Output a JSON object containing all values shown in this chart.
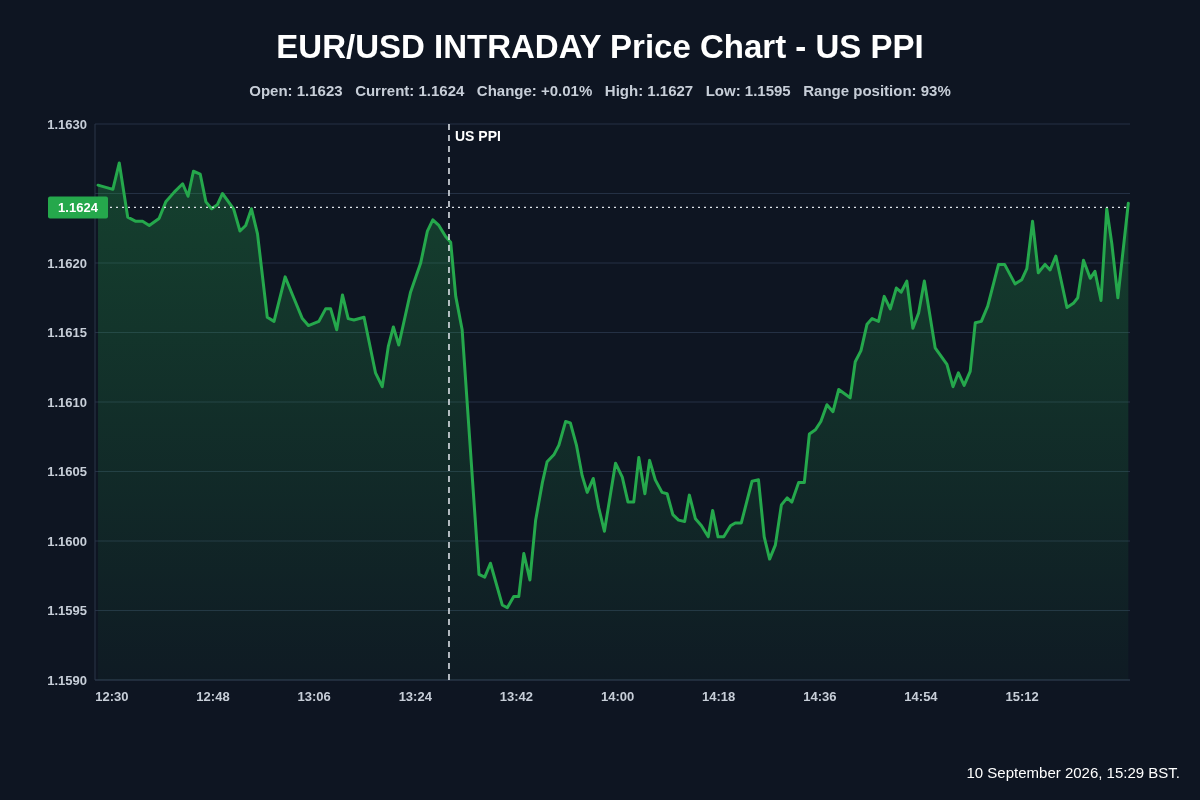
{
  "chart_data": {
    "type": "area",
    "title": "EUR/USD INTRADAY Price Chart - US PPI",
    "subtitle": "Open: 1.1623   Current: 1.1624   Change: +0.01%   High: 1.1627   Low: 1.1595   Range position: 93%",
    "xlim": [
      12.45,
      15.52
    ],
    "xticks": [
      {
        "value": 12.5,
        "label": "12:30"
      },
      {
        "value": 12.8,
        "label": "12:48"
      },
      {
        "value": 13.1,
        "label": "13:06"
      },
      {
        "value": 13.4,
        "label": "13:24"
      },
      {
        "value": 13.7,
        "label": "13:42"
      },
      {
        "value": 14.0,
        "label": "14:00"
      },
      {
        "value": 14.3,
        "label": "14:18"
      },
      {
        "value": 14.6,
        "label": "14:36"
      },
      {
        "value": 14.9,
        "label": "14:54"
      },
      {
        "value": 15.2,
        "label": "15:12"
      }
    ],
    "ylim": [
      1.159,
      1.163
    ],
    "yticks": [
      {
        "value": 1.159,
        "label": "1.1590"
      },
      {
        "value": 1.1595,
        "label": "1.1595"
      },
      {
        "value": 1.16,
        "label": "1.1600"
      },
      {
        "value": 1.1605,
        "label": "1.1605"
      },
      {
        "value": 1.161,
        "label": "1.1610"
      },
      {
        "value": 1.1615,
        "label": "1.1615"
      },
      {
        "value": 1.162,
        "label": "1.1620"
      },
      {
        "value": 1.1625,
        "label": null
      },
      {
        "value": 1.163,
        "label": "1.1630"
      }
    ],
    "grid": "y",
    "series": [
      {
        "color": "#25a84c",
        "x": [
          12.459,
          12.503,
          12.522,
          12.547,
          12.571,
          12.591,
          12.611,
          12.64,
          12.66,
          12.685,
          12.71,
          12.726,
          12.742,
          12.762,
          12.779,
          12.796,
          12.813,
          12.828,
          12.861,
          12.88,
          12.897,
          12.914,
          12.932,
          12.961,
          12.981,
          13.014,
          13.036,
          13.065,
          13.083,
          13.114,
          13.134,
          13.149,
          13.167,
          13.184,
          13.201,
          13.218,
          13.248,
          13.282,
          13.302,
          13.32,
          13.335,
          13.351,
          13.386,
          13.416,
          13.436,
          13.452,
          13.47,
          13.49,
          13.505,
          13.52,
          13.539,
          13.589,
          13.606,
          13.623,
          13.658,
          13.673,
          13.692,
          13.707,
          13.722,
          13.74,
          13.757,
          13.777,
          13.791,
          13.811,
          13.826,
          13.846,
          13.86,
          13.878,
          13.895,
          13.91,
          13.928,
          13.944,
          13.961,
          13.994,
          14.014,
          14.031,
          14.048,
          14.063,
          14.081,
          14.095,
          14.112,
          14.132,
          14.147,
          14.164,
          14.181,
          14.199,
          14.213,
          14.231,
          14.249,
          14.269,
          14.282,
          14.298,
          14.315,
          14.335,
          14.349,
          14.367,
          14.399,
          14.418,
          14.435,
          14.451,
          14.468,
          14.486,
          14.503,
          14.517,
          14.537,
          14.554,
          14.569,
          14.587,
          14.603,
          14.621,
          14.639,
          14.656,
          14.69,
          14.705,
          14.722,
          14.74,
          14.755,
          14.774,
          14.791,
          14.809,
          14.827,
          14.841,
          14.858,
          14.876,
          14.893,
          14.91,
          14.942,
          14.977,
          14.995,
          15.011,
          15.028,
          15.046,
          15.061,
          15.079,
          15.098,
          15.13,
          15.148,
          15.179,
          15.199,
          15.214,
          15.231,
          15.248,
          15.268,
          15.283,
          15.3,
          15.333,
          15.352,
          15.365,
          15.382,
          15.402,
          15.416,
          15.434,
          15.451,
          15.466,
          15.484,
          15.515
        ],
        "values": [
          1.16256,
          1.16253,
          1.16272,
          1.16233,
          1.1623,
          1.1623,
          1.16227,
          1.16232,
          1.16244,
          1.16251,
          1.16257,
          1.16248,
          1.16266,
          1.16264,
          1.16244,
          1.16239,
          1.16242,
          1.1625,
          1.16239,
          1.16223,
          1.16227,
          1.16239,
          1.16221,
          1.16161,
          1.16158,
          1.1619,
          1.16177,
          1.1616,
          1.16155,
          1.16158,
          1.16167,
          1.16167,
          1.16152,
          1.16177,
          1.1616,
          1.16159,
          1.16161,
          1.16121,
          1.16111,
          1.1614,
          1.16154,
          1.16141,
          1.16179,
          1.162,
          1.16223,
          1.16231,
          1.16227,
          1.16219,
          1.16215,
          1.16176,
          1.16152,
          1.15976,
          1.15974,
          1.15984,
          1.15954,
          1.15952,
          1.1596,
          1.1596,
          1.15991,
          1.15972,
          1.16015,
          1.16042,
          1.16057,
          1.16062,
          1.16069,
          1.16086,
          1.16085,
          1.16069,
          1.16047,
          1.16035,
          1.16045,
          1.16024,
          1.16007,
          1.16056,
          1.16046,
          1.16028,
          1.16028,
          1.1606,
          1.16034,
          1.16058,
          1.16044,
          1.16035,
          1.16034,
          1.16019,
          1.16015,
          1.16014,
          1.16033,
          1.16016,
          1.16011,
          1.16003,
          1.16022,
          1.16003,
          1.16003,
          1.16011,
          1.16013,
          1.16013,
          1.16043,
          1.16044,
          1.16003,
          1.15987,
          1.15997,
          1.16026,
          1.16031,
          1.16028,
          1.16042,
          1.16042,
          1.16077,
          1.1608,
          1.16086,
          1.16098,
          1.16093,
          1.16109,
          1.16103,
          1.16129,
          1.16137,
          1.16156,
          1.1616,
          1.16158,
          1.16176,
          1.16167,
          1.16182,
          1.16179,
          1.16187,
          1.16153,
          1.16164,
          1.16187,
          1.16139,
          1.16127,
          1.16111,
          1.16121,
          1.16112,
          1.16122,
          1.16157,
          1.16158,
          1.16169,
          1.16199,
          1.16199,
          1.16185,
          1.16188,
          1.16196,
          1.1623,
          1.16193,
          1.16199,
          1.16195,
          1.16205,
          1.16168,
          1.16171,
          1.16175,
          1.16202,
          1.16189,
          1.16194,
          1.16173,
          1.16239,
          1.16214,
          1.16175,
          1.16243
        ]
      }
    ],
    "ref_lines": [
      {
        "axis": "y",
        "value": 1.1624,
        "label": "1.1624",
        "color": "#dfe4ea",
        "line_style": "dotted"
      },
      {
        "axis": "x",
        "value": 13.5,
        "label": "US PPI",
        "color": "#e8ecf2",
        "line_style": "dashed"
      }
    ],
    "annotations": [
      "10 September 2026, 15:29 BST."
    ]
  }
}
